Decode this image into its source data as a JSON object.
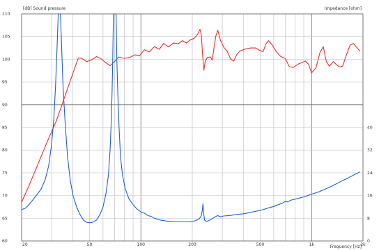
{
  "chart_data": {
    "type": "line",
    "title_left": "[dB]  Sound pressure",
    "title_right": "Impedance  [ohm]",
    "xlabel": "Frequency  [Hz]",
    "x_scale": "log",
    "xlim": [
      20,
      2000
    ],
    "x_tick_labels": [
      "20",
      "50",
      "100",
      "200",
      "500",
      "1k",
      "2k"
    ],
    "x_tick_values": [
      20,
      50,
      100,
      200,
      500,
      1000,
      2000
    ],
    "y_left": {
      "lim": [
        60,
        110
      ],
      "ticks": [
        60,
        65,
        70,
        75,
        80,
        85,
        90,
        95,
        100,
        105,
        110
      ],
      "labels": [
        "60",
        "65",
        "70",
        "75",
        "80",
        "85",
        "90",
        "95",
        "100",
        "105",
        "110"
      ]
    },
    "y_right": {
      "ticks": [
        0,
        8,
        16,
        24,
        32,
        40
      ],
      "labels": [
        "0",
        "8",
        "16",
        "24",
        "32",
        "40"
      ]
    },
    "grid": true,
    "series": [
      {
        "axis": "left",
        "color": "#e8302a",
        "points": [
          [
            20,
            68.5
          ],
          [
            22,
            72
          ],
          [
            25,
            77
          ],
          [
            28,
            81.5
          ],
          [
            32,
            86.5
          ],
          [
            36,
            92
          ],
          [
            40,
            97
          ],
          [
            43,
            100.3
          ],
          [
            45,
            100.2
          ],
          [
            48,
            99.5
          ],
          [
            51,
            99.8
          ],
          [
            55,
            100.6
          ],
          [
            58,
            100.2
          ],
          [
            62,
            99.3
          ],
          [
            66,
            98.6
          ],
          [
            70,
            99.5
          ],
          [
            74,
            100.5
          ],
          [
            80,
            100.2
          ],
          [
            86,
            100.4
          ],
          [
            92,
            101
          ],
          [
            98,
            100.8
          ],
          [
            105,
            102.1
          ],
          [
            112,
            101.6
          ],
          [
            120,
            102.8
          ],
          [
            128,
            102.2
          ],
          [
            136,
            103.5
          ],
          [
            145,
            102.7
          ],
          [
            155,
            103.6
          ],
          [
            165,
            103.4
          ],
          [
            175,
            104.1
          ],
          [
            185,
            103.6
          ],
          [
            195,
            104.3
          ],
          [
            205,
            104.6
          ],
          [
            215,
            105.5
          ],
          [
            222,
            106.6
          ],
          [
            226,
            105.3
          ],
          [
            230,
            100.8
          ],
          [
            234,
            97.6
          ],
          [
            238,
            99.5
          ],
          [
            245,
            100.4
          ],
          [
            255,
            100.5
          ],
          [
            262,
            99.8
          ],
          [
            268,
            102.5
          ],
          [
            275,
            105.2
          ],
          [
            282,
            106.4
          ],
          [
            292,
            104.2
          ],
          [
            305,
            102.7
          ],
          [
            320,
            101.8
          ],
          [
            335,
            100.1
          ],
          [
            350,
            99.6
          ],
          [
            365,
            101.1
          ],
          [
            380,
            101.8
          ],
          [
            410,
            102.3
          ],
          [
            440,
            102.5
          ],
          [
            470,
            102.5
          ],
          [
            500,
            101.9
          ],
          [
            520,
            101.7
          ],
          [
            540,
            103.4
          ],
          [
            560,
            104.1
          ],
          [
            590,
            103.1
          ],
          [
            620,
            101.7
          ],
          [
            660,
            100.6
          ],
          [
            700,
            100.2
          ],
          [
            740,
            98.4
          ],
          [
            780,
            98.2
          ],
          [
            840,
            99
          ],
          [
            880,
            99.3
          ],
          [
            920,
            99.6
          ],
          [
            960,
            98.9
          ],
          [
            1000,
            97
          ],
          [
            1060,
            98.1
          ],
          [
            1120,
            101.5
          ],
          [
            1170,
            102.8
          ],
          [
            1220,
            99.5
          ],
          [
            1270,
            98.5
          ],
          [
            1340,
            99.5
          ],
          [
            1400,
            98.8
          ],
          [
            1460,
            98.3
          ],
          [
            1520,
            98.5
          ],
          [
            1600,
            101
          ],
          [
            1680,
            103.1
          ],
          [
            1760,
            103.5
          ],
          [
            1850,
            102.5
          ],
          [
            1920,
            101.8
          ]
        ]
      },
      {
        "axis": "left",
        "color": "#1f5fd0",
        "points": [
          [
            20,
            66.9
          ],
          [
            21,
            67.2
          ],
          [
            22,
            67.9
          ],
          [
            23,
            68.8
          ],
          [
            24.5,
            70.1
          ],
          [
            26,
            71.4
          ],
          [
            27.5,
            73.5
          ],
          [
            28.8,
            76.5
          ],
          [
            29.8,
            80.5
          ],
          [
            30.8,
            86
          ],
          [
            31.6,
            94
          ],
          [
            32.3,
            103
          ],
          [
            32.8,
            110
          ],
          [
            33.8,
            110
          ],
          [
            34.3,
            103
          ],
          [
            35,
            94
          ],
          [
            36,
            86
          ],
          [
            37.2,
            78.5
          ],
          [
            38.5,
            73.5
          ],
          [
            40,
            70
          ],
          [
            42,
            67.5
          ],
          [
            44,
            65.8
          ],
          [
            46,
            64.6
          ],
          [
            48,
            64.1
          ],
          [
            50,
            64
          ],
          [
            52,
            64.1
          ],
          [
            55,
            64.6
          ],
          [
            57.5,
            65.8
          ],
          [
            60,
            67.5
          ],
          [
            62.5,
            70.5
          ],
          [
            64.5,
            74.5
          ],
          [
            66,
            80
          ],
          [
            67,
            86
          ],
          [
            67.8,
            93
          ],
          [
            68.4,
            100
          ],
          [
            69,
            110
          ],
          [
            71.5,
            110
          ],
          [
            72.3,
            100
          ],
          [
            73.3,
            92
          ],
          [
            74.5,
            85
          ],
          [
            76,
            78.5
          ],
          [
            78,
            74.5
          ],
          [
            81,
            71.5
          ],
          [
            85,
            69.3
          ],
          [
            90,
            68
          ],
          [
            95,
            67
          ],
          [
            100,
            66.4
          ],
          [
            105,
            66.1
          ],
          [
            110,
            65.6
          ],
          [
            115,
            65.4
          ],
          [
            120,
            65
          ],
          [
            130,
            64.6
          ],
          [
            140,
            64.4
          ],
          [
            150,
            64.3
          ],
          [
            160,
            64.2
          ],
          [
            170,
            64.2
          ],
          [
            180,
            64.2
          ],
          [
            190,
            64.2
          ],
          [
            200,
            64.3
          ],
          [
            210,
            64.5
          ],
          [
            220,
            64.9
          ],
          [
            226,
            65.6
          ],
          [
            229,
            66.8
          ],
          [
            231,
            68.2
          ],
          [
            233,
            66.3
          ],
          [
            236,
            64.6
          ],
          [
            242,
            64.3
          ],
          [
            250,
            64.5
          ],
          [
            262,
            64.9
          ],
          [
            272,
            65.3
          ],
          [
            282,
            65.6
          ],
          [
            292,
            65.3
          ],
          [
            305,
            65.5
          ],
          [
            330,
            65.6
          ],
          [
            360,
            65.8
          ],
          [
            400,
            66
          ],
          [
            440,
            66.3
          ],
          [
            480,
            66.6
          ],
          [
            520,
            66.9
          ],
          [
            560,
            67.3
          ],
          [
            600,
            67.6
          ],
          [
            640,
            68
          ],
          [
            680,
            68.4
          ],
          [
            700,
            68.7
          ],
          [
            720,
            68.6
          ],
          [
            760,
            69
          ],
          [
            800,
            69.2
          ],
          [
            900,
            69.7
          ],
          [
            1000,
            70.3
          ],
          [
            1100,
            70.8
          ],
          [
            1200,
            71.4
          ],
          [
            1300,
            72
          ],
          [
            1400,
            72.6
          ],
          [
            1500,
            73.2
          ],
          [
            1600,
            73.7
          ],
          [
            1700,
            74.2
          ],
          [
            1800,
            74.7
          ],
          [
            1920,
            75.2
          ]
        ]
      }
    ]
  }
}
